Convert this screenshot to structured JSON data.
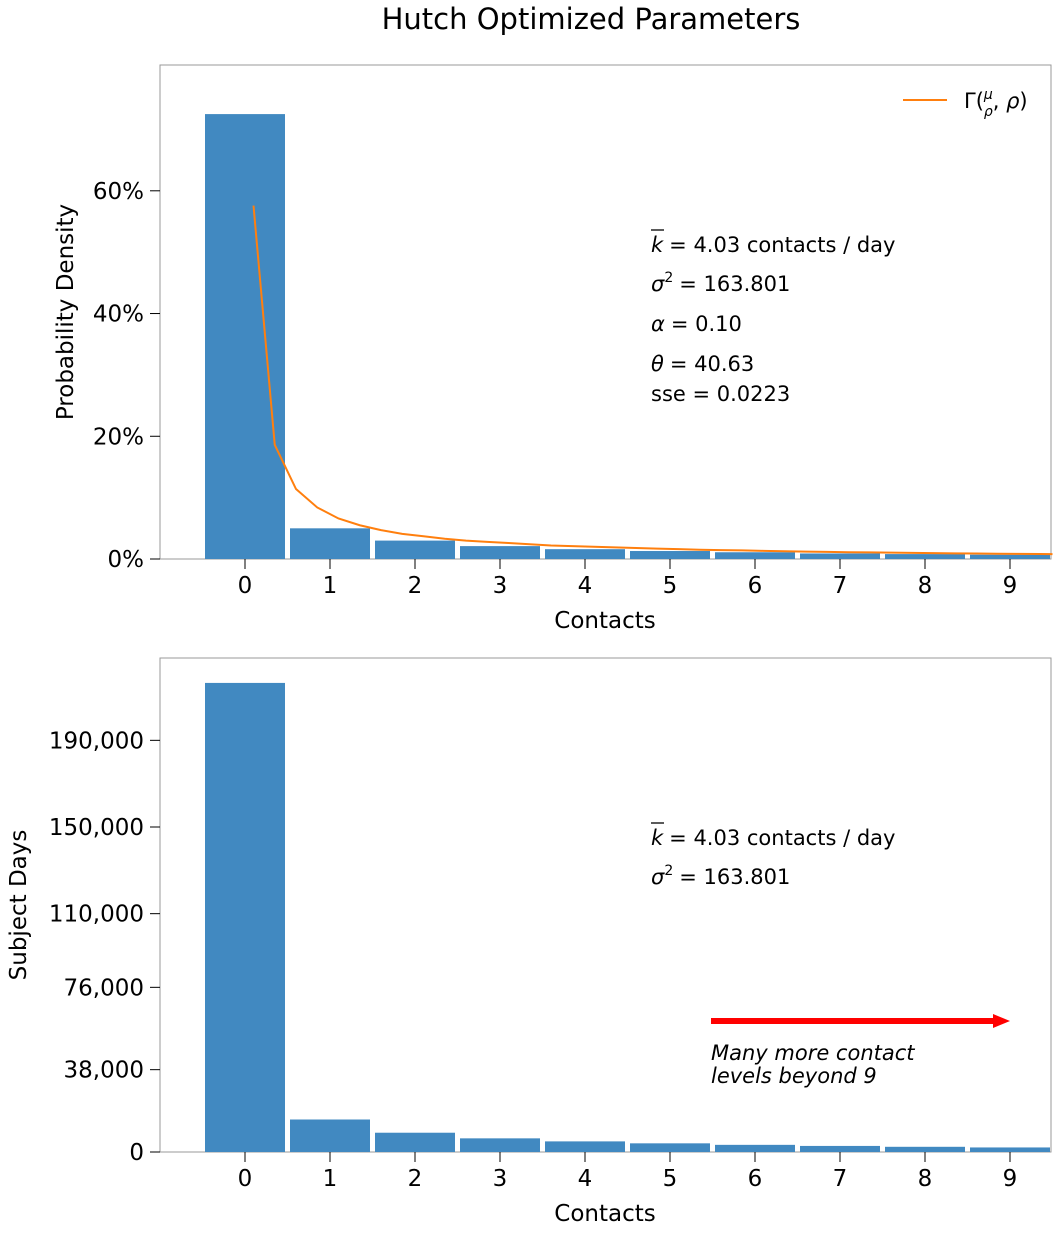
{
  "figure": {
    "title": "Hutch Optimized Parameters"
  },
  "colors": {
    "bar": "#4189c1",
    "fit_line": "#ff7f0e",
    "arrow": "#ff0000",
    "frame": "#999999"
  },
  "chart_data": [
    {
      "type": "bar",
      "xlabel": "Contacts",
      "ylabel": "Probability Density",
      "categories": [
        "0",
        "1",
        "2",
        "3",
        "4",
        "5",
        "6",
        "7",
        "8",
        "9"
      ],
      "values": [
        0.725,
        0.05,
        0.03,
        0.021,
        0.016,
        0.013,
        0.011,
        0.009,
        0.008,
        0.007
      ],
      "ylim": [
        0,
        0.805
      ],
      "yticks": [
        0,
        0.2,
        0.4,
        0.6
      ],
      "ytick_labels": [
        "0%",
        "20%",
        "40%",
        "60%"
      ],
      "fit_line": {
        "legend_label": "Γ(μ/ρ, ρ)",
        "x": [
          0.1,
          0.35,
          0.6,
          0.85,
          1.1,
          1.35,
          1.6,
          1.85,
          2.1,
          2.35,
          2.6,
          2.85,
          3.1,
          3.35,
          3.6,
          3.85,
          4.1,
          4.35,
          4.6,
          4.85,
          5.1,
          5.35,
          5.6,
          5.85,
          6.1,
          6.35,
          6.6,
          6.85,
          7.1,
          7.35,
          7.6,
          7.85,
          8.1,
          8.35,
          8.6,
          8.85,
          9.1,
          9.35,
          9.5
        ],
        "y": [
          0.576,
          0.186,
          0.114,
          0.084,
          0.066,
          0.055,
          0.047,
          0.041,
          0.037,
          0.033,
          0.03,
          0.028,
          0.026,
          0.024,
          0.022,
          0.021,
          0.02,
          0.019,
          0.018,
          0.017,
          0.016,
          0.015,
          0.0145,
          0.014,
          0.0133,
          0.0127,
          0.0121,
          0.0116,
          0.0111,
          0.0107,
          0.0103,
          0.0099,
          0.0095,
          0.0092,
          0.0089,
          0.0086,
          0.0083,
          0.0081,
          0.008
        ]
      },
      "stats": {
        "mean": "= 4.03 contacts / day",
        "variance": "= 163.801",
        "alpha": "= 0.10",
        "theta": "= 40.63",
        "sse": "sse = 0.0223"
      },
      "grid": false,
      "legend_position": "top-right"
    },
    {
      "type": "bar",
      "xlabel": "Contacts",
      "ylabel": "Subject Days",
      "categories": [
        "0",
        "1",
        "2",
        "3",
        "4",
        "5",
        "6",
        "7",
        "8",
        "9"
      ],
      "values": [
        216500,
        15000,
        8900,
        6300,
        4900,
        4000,
        3300,
        2800,
        2400,
        2100
      ],
      "ylim": [
        0,
        228000
      ],
      "yticks": [
        0,
        38000,
        76000,
        110000,
        150000,
        190000
      ],
      "ytick_labels": [
        "0",
        "38,000",
        "76,000",
        "110,000",
        "150,000",
        "190,000"
      ],
      "stats": {
        "mean": "= 4.03 contacts / day",
        "variance": "= 163.801"
      },
      "annotation": {
        "line1": "Many more contact",
        "line2": "levels beyond 9"
      },
      "grid": false
    }
  ]
}
